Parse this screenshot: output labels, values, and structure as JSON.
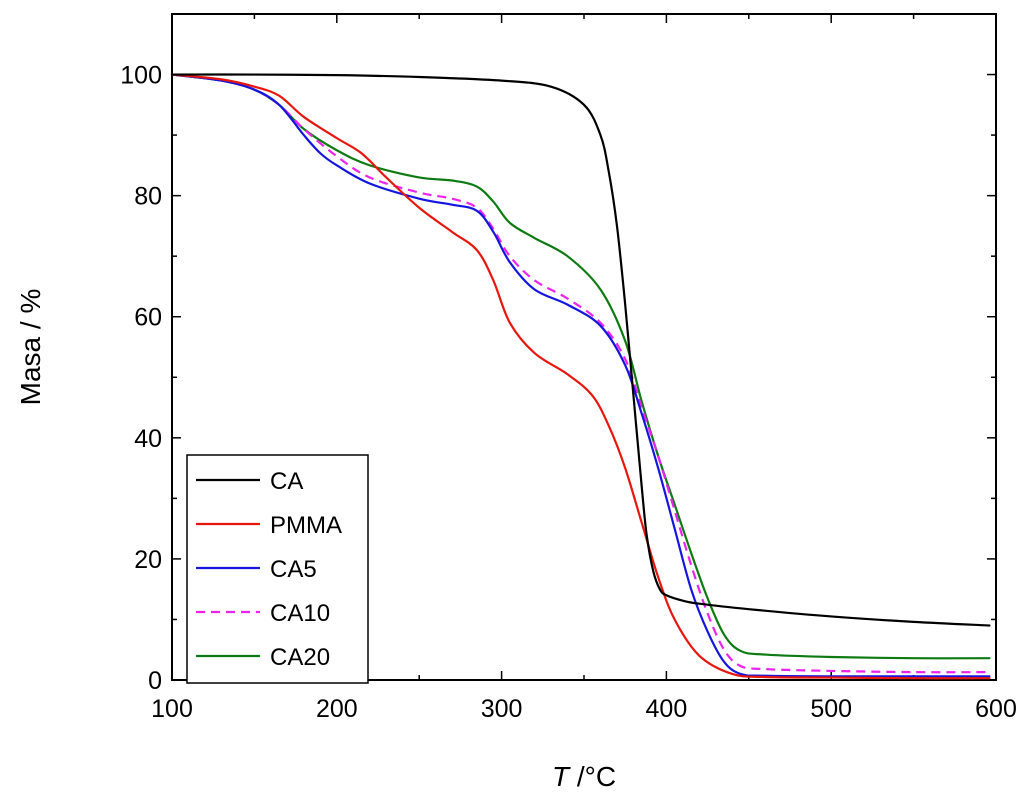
{
  "chart_data": {
    "type": "line",
    "title": "",
    "xlabel_italic": "T",
    "xlabel_rest": " /°C",
    "ylabel": "Masa / %",
    "xlim": [
      100,
      600
    ],
    "ylim": [
      0,
      110
    ],
    "xticks": [
      100,
      200,
      300,
      400,
      500,
      600
    ],
    "yticks": [
      0,
      20,
      40,
      60,
      80,
      100
    ],
    "grid": false,
    "legend_position": "bottom-left",
    "series": [
      {
        "name": "CA",
        "color": "#000000",
        "dash": "solid",
        "x": [
          100,
          150,
          200,
          250,
          300,
          330,
          350,
          360,
          365,
          370,
          375,
          380,
          385,
          388,
          392,
          396,
          400,
          410,
          420,
          450,
          500,
          550,
          596
        ],
        "y": [
          100,
          100,
          99.9,
          99.6,
          99,
          98,
          95,
          90,
          84,
          75,
          62,
          47,
          32,
          24,
          18,
          15,
          14,
          13.1,
          12.6,
          11.7,
          10.5,
          9.6,
          9
        ]
      },
      {
        "name": "PMMA",
        "color": "#e8160c",
        "dash": "solid",
        "x": [
          100,
          130,
          150,
          165,
          180,
          200,
          215,
          230,
          250,
          270,
          285,
          295,
          305,
          320,
          340,
          355,
          365,
          375,
          385,
          395,
          405,
          420,
          440,
          460,
          500,
          550,
          596
        ],
        "y": [
          100,
          99.2,
          98,
          96.5,
          93,
          89.5,
          87,
          83,
          78,
          74,
          71,
          66,
          59,
          54,
          50.5,
          47,
          42,
          35,
          26,
          17,
          10,
          4,
          1,
          0.5,
          0.4,
          0.3,
          0.3
        ]
      },
      {
        "name": "CA5",
        "color": "#1515e0",
        "dash": "solid",
        "x": [
          100,
          130,
          150,
          165,
          180,
          190,
          200,
          220,
          250,
          270,
          285,
          295,
          305,
          320,
          340,
          360,
          375,
          385,
          395,
          405,
          415,
          425,
          435,
          445,
          460,
          500,
          550,
          596
        ],
        "y": [
          100,
          99,
          97.5,
          95,
          90,
          87,
          85,
          82,
          79.5,
          78.5,
          77.5,
          74,
          69,
          64.5,
          62,
          58.5,
          52,
          44,
          35,
          25,
          15,
          8,
          3,
          1,
          0.7,
          0.6,
          0.6,
          0.6
        ]
      },
      {
        "name": "CA10",
        "color": "#ee22ee",
        "dash": "dashed",
        "x": [
          100,
          130,
          150,
          165,
          180,
          200,
          220,
          250,
          270,
          285,
          295,
          305,
          320,
          340,
          360,
          375,
          385,
          395,
          405,
          415,
          425,
          435,
          445,
          460,
          500,
          550,
          596
        ],
        "y": [
          100,
          99,
          97.5,
          95,
          91,
          86.5,
          83,
          80.5,
          79.5,
          78,
          74.5,
          70,
          66,
          63,
          59,
          53,
          45,
          37,
          28,
          19,
          11,
          5,
          2.3,
          1.8,
          1.5,
          1.3,
          1.3
        ]
      },
      {
        "name": "CA20",
        "color": "#0e7a12",
        "dash": "solid",
        "x": [
          100,
          130,
          150,
          165,
          180,
          200,
          220,
          250,
          270,
          285,
          295,
          305,
          320,
          340,
          360,
          375,
          385,
          395,
          405,
          415,
          425,
          435,
          445,
          460,
          500,
          550,
          596
        ],
        "y": [
          100,
          99,
          97.5,
          95,
          91,
          87.5,
          85,
          83,
          82.5,
          81.5,
          79,
          75.5,
          73,
          70,
          64.5,
          56,
          46,
          37,
          29,
          21,
          13.5,
          7.5,
          4.8,
          4.2,
          3.8,
          3.6,
          3.6
        ]
      }
    ]
  }
}
